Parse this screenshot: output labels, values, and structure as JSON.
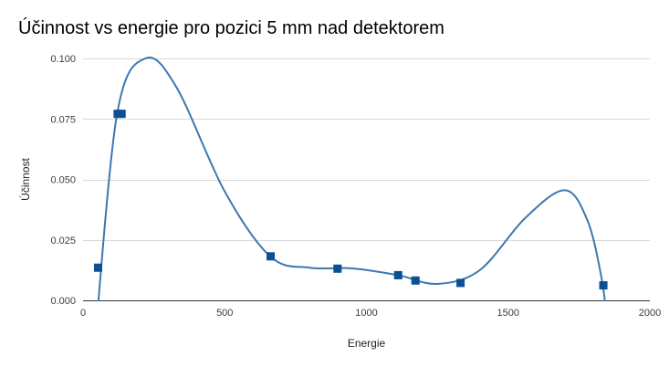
{
  "chart_data": {
    "type": "scatter",
    "title": "Účinnost vs energie pro pozici 5 mm nad detektorem",
    "xlabel": "Energie",
    "ylabel": "Účinnost",
    "xlim": [
      0,
      2000
    ],
    "ylim": [
      0,
      0.1
    ],
    "xticks": [
      0,
      500,
      1000,
      1500,
      2000
    ],
    "xtick_labels": [
      "0",
      "500",
      "1000",
      "1500",
      "2000"
    ],
    "yticks": [
      0,
      0.025,
      0.05,
      0.075,
      0.1
    ],
    "ytick_labels": [
      "0.000",
      "0.025",
      "0.050",
      "0.075",
      "0.100"
    ],
    "grid": true,
    "legend": "none",
    "series": [
      {
        "name": "Účinnost",
        "color": "#0b4f94",
        "marker": "square",
        "points": [
          {
            "x": 53,
            "y": 0.0135
          },
          {
            "x": 122,
            "y": 0.0771
          },
          {
            "x": 136,
            "y": 0.0771
          },
          {
            "x": 662,
            "y": 0.0182
          },
          {
            "x": 898,
            "y": 0.0131
          },
          {
            "x": 1112,
            "y": 0.0104
          },
          {
            "x": 1173,
            "y": 0.0082
          },
          {
            "x": 1332,
            "y": 0.0072
          },
          {
            "x": 1836,
            "y": 0.0062
          }
        ]
      }
    ],
    "trendline": {
      "type": "smooth",
      "color": "#3d78b0",
      "points": [
        {
          "x": 40,
          "y": -0.02
        },
        {
          "x": 120,
          "y": 0.077
        },
        {
          "x": 220,
          "y": 0.1
        },
        {
          "x": 330,
          "y": 0.088
        },
        {
          "x": 500,
          "y": 0.045
        },
        {
          "x": 662,
          "y": 0.018
        },
        {
          "x": 800,
          "y": 0.0135
        },
        {
          "x": 950,
          "y": 0.0132
        },
        {
          "x": 1112,
          "y": 0.0104
        },
        {
          "x": 1250,
          "y": 0.0068
        },
        {
          "x": 1400,
          "y": 0.0125
        },
        {
          "x": 1560,
          "y": 0.034
        },
        {
          "x": 1700,
          "y": 0.0455
        },
        {
          "x": 1780,
          "y": 0.033
        },
        {
          "x": 1830,
          "y": 0.009
        },
        {
          "x": 1850,
          "y": -0.01
        }
      ]
    }
  }
}
